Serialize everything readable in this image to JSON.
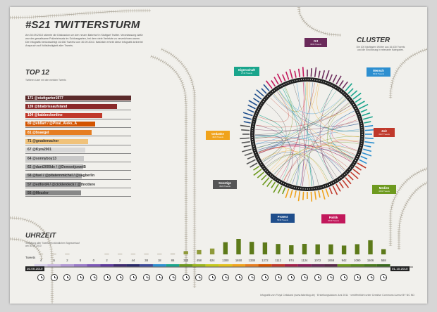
{
  "header": {
    "title": "#S21 TWITTERSTURM",
    "intro": "Am 30.09.2010 stürmte die Diskussion um den neuen Bahnhof in Stuttgart Twitter. Veranlassung dafür war der gewaltsame Polizeieinsatz im Schlossgarten, bei dem viele Verletzte zu verzeichnen waren. Die Infografik berücksichtigt 16.630 Tweets vom 30.09.2010. Natürlich erhebt diese Infografik keinerlei Anspruch auf Vollständigkeit aller Tweets."
  },
  "top12": {
    "title": "TOP 12",
    "subtitle": "Twitterer-User mit den meisten Tweets",
    "items": [
      {
        "count": "171",
        "name": "@stuttgarter1977",
        "color": "#5b2a2a",
        "share": 1.0,
        "dark": false
      },
      {
        "count": "139",
        "name": "@bbabrissaufstand",
        "color": "#8a2a2a",
        "share": 0.81,
        "dark": false
      },
      {
        "count": "104",
        "name": "@kabbockonline",
        "color": "#c0392b",
        "share": 0.61,
        "dark": false
      },
      {
        "count": "89",
        "name": "@eb8art / @Pixal_Aleks_A",
        "color": "#d35400",
        "share": 0.52,
        "dark": false
      },
      {
        "count": "81",
        "name": "@bsaegel",
        "color": "#e67e22",
        "share": 0.47,
        "dark": false
      },
      {
        "count": "71",
        "name": "@gnademacher",
        "color": "#f0c27a",
        "share": 0.42,
        "dark": true
      },
      {
        "count": "67",
        "name": "@Kyra2001",
        "color": "#d8d8d8",
        "share": 0.39,
        "dark": true
      },
      {
        "count": "64",
        "name": "@sonnyboy13",
        "color": "#c9c9c9",
        "share": 0.37,
        "dark": true
      },
      {
        "count": "62",
        "name": "@dani2000de / @DemoetjowetB",
        "color": "#b8b8b8",
        "share": 0.36,
        "dark": true
      },
      {
        "count": "58",
        "name": "@fuel / @pitaternmichel / @sagberlin",
        "color": "#a8a8a8",
        "share": 0.34,
        "dark": true
      },
      {
        "count": "57",
        "name": "@edford4 / @cicklerdeck / @throttere",
        "color": "#989898",
        "share": 0.33,
        "dark": true
      },
      {
        "count": "56",
        "name": "@Mezzler",
        "color": "#888888",
        "share": 0.33,
        "dark": true
      }
    ]
  },
  "cluster": {
    "title": "CLUSTER",
    "subtitle": "Die 100 häufigsten Wörter aus 16.630 Tweets und die Einordnung in relevante Kategorien.",
    "labels": [
      {
        "name": "Ort",
        "count": "3966 Tweets",
        "color": "#6a2a5a",
        "key": "ort"
      },
      {
        "name": "Eigenschaft",
        "count": "2743 Tweets",
        "color": "#1aa58c",
        "key": "eig"
      },
      {
        "name": "Mensch",
        "count": "6013 Tweets",
        "color": "#2d8fd0",
        "key": "men"
      },
      {
        "name": "Zeit",
        "count": "4347 Tweets",
        "color": "#c0392b",
        "key": "zeit"
      },
      {
        "name": "Gedanke",
        "count": "4826 Tweets",
        "color": "#f0a31c",
        "key": "ged"
      },
      {
        "name": "Medien",
        "count": "4402 Tweets",
        "color": "#6e9a1f",
        "key": "med"
      },
      {
        "name": "Sonstige",
        "count": "3926 Tweets",
        "color": "#555555",
        "key": "son"
      },
      {
        "name": "Protest",
        "count": "5630 Tweets",
        "color": "#1f4e8c",
        "key": "pro"
      },
      {
        "name": "Politik",
        "count": "4040 Tweets",
        "color": "#c2185b",
        "key": "pol"
      }
    ]
  },
  "uhrzeit": {
    "title": "UHRZEIT",
    "subtitle": "Verteilung aller Tweets im stündlichen Tagesverlauf am 30.09.2010",
    "tweets_label": "Tweets",
    "date_start": "30.09.2010",
    "date_end": "01.10.2010",
    "values": [
      4,
      6,
      2,
      0,
      0,
      2,
      2,
      44,
      38,
      18,
      86,
      340,
      458,
      624,
      1300,
      1650,
      1338,
      1272,
      1112,
      974,
      1124,
      1072,
      1068,
      942,
      1090,
      1506,
      558
    ]
  },
  "footer": "Infografik von Floyd Celluland (www.fakeblog.de) · Erstellungsdatum Juni 2011 · veröffentlicht unter Creative Commons Lizenz BY NC ND"
}
